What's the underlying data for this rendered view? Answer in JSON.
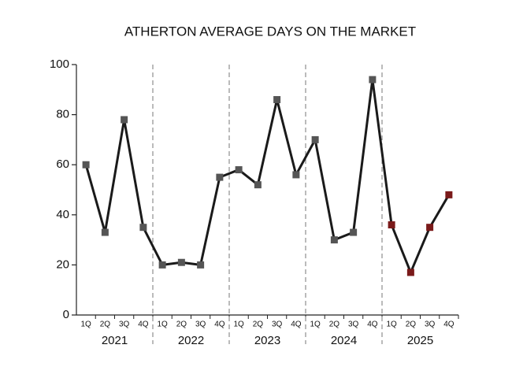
{
  "chart_data": {
    "type": "line",
    "title": "ATHERTON AVERAGE DAYS ON THE MARKET",
    "groups": [
      {
        "label": "2021",
        "categories": [
          "1Q",
          "2Q",
          "3Q",
          "4Q"
        ]
      },
      {
        "label": "2022",
        "categories": [
          "1Q",
          "2Q",
          "3Q",
          "4Q"
        ]
      },
      {
        "label": "2023",
        "categories": [
          "1Q",
          "2Q",
          "3Q",
          "4Q"
        ]
      },
      {
        "label": "2024",
        "categories": [
          "1Q",
          "2Q",
          "3Q",
          "4Q"
        ]
      },
      {
        "label": "2025",
        "categories": [
          "1Q",
          "2Q",
          "3Q",
          "4Q"
        ]
      }
    ],
    "values": [
      60,
      33,
      78,
      35,
      20,
      21,
      20,
      55,
      58,
      52,
      86,
      56,
      70,
      30,
      33,
      94,
      36,
      17,
      35,
      48
    ],
    "line_color": "#1a1a1a",
    "marker_colors": [
      "#555555",
      "#555555",
      "#555555",
      "#555555",
      "#555555",
      "#555555",
      "#555555",
      "#555555",
      "#555555",
      "#555555",
      "#555555",
      "#555555",
      "#555555",
      "#555555",
      "#555555",
      "#555555",
      "#7a1a1a",
      "#7a1a1a",
      "#7a1a1a",
      "#7a1a1a"
    ],
    "ylim": [
      0,
      100
    ],
    "yticks": [
      0,
      20,
      40,
      60,
      80,
      100
    ]
  }
}
